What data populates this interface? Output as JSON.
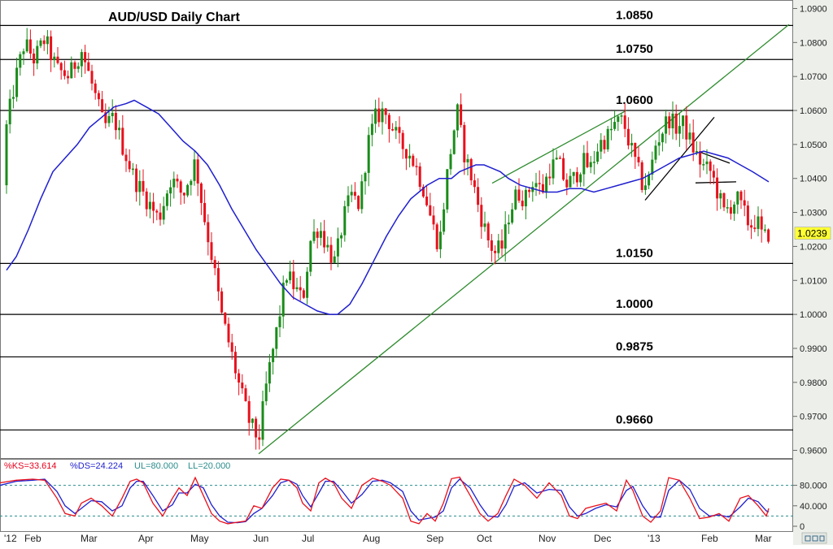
{
  "chart_data": {
    "type": "candlestick",
    "title": "AUD/USD Daily Chart",
    "ylim": [
      0.9575,
      1.0925
    ],
    "y_ticks": [
      "1.0900",
      "1.0800",
      "1.0700",
      "1.0600",
      "1.0500",
      "1.0400",
      "1.0300",
      "1.0200",
      "1.0100",
      "1.0000",
      "0.9900",
      "0.9800",
      "0.9700",
      "0.9600"
    ],
    "x_ticks": [
      "'12",
      "Feb",
      "Mar",
      "Apr",
      "May",
      "Jun",
      "Jul",
      "Aug",
      "Sep",
      "Oct",
      "Nov",
      "Dec",
      "'13",
      "Feb",
      "Mar"
    ],
    "last_price": "1.0239",
    "levels": [
      {
        "label": "1.0850",
        "value": 1.085
      },
      {
        "label": "1.0750",
        "value": 1.075
      },
      {
        "label": "1.0600",
        "value": 1.06
      },
      {
        "label": "1.0150",
        "value": 1.015
      },
      {
        "label": "1.0000",
        "value": 1.0
      },
      {
        "label": "0.9875",
        "value": 0.9875
      },
      {
        "label": "0.9660",
        "value": 0.966
      }
    ],
    "price_path": [
      [
        0,
        1.038
      ],
      [
        8,
        1.055
      ],
      [
        18,
        1.068
      ],
      [
        30,
        1.08
      ],
      [
        42,
        1.075
      ],
      [
        55,
        1.081
      ],
      [
        70,
        1.072
      ],
      [
        85,
        1.07
      ],
      [
        100,
        1.078
      ],
      [
        115,
        1.066
      ],
      [
        128,
        1.055
      ],
      [
        140,
        1.058
      ],
      [
        150,
        1.05
      ],
      [
        165,
        1.04
      ],
      [
        180,
        1.034
      ],
      [
        195,
        1.028
      ],
      [
        210,
        1.04
      ],
      [
        225,
        1.035
      ],
      [
        240,
        1.045
      ],
      [
        250,
        1.03
      ],
      [
        262,
        1.015
      ],
      [
        272,
        1.0
      ],
      [
        283,
        0.99
      ],
      [
        295,
        0.978
      ],
      [
        307,
        0.968
      ],
      [
        318,
        0.963
      ],
      [
        328,
        0.98
      ],
      [
        340,
        0.995
      ],
      [
        352,
        1.012
      ],
      [
        362,
        1.008
      ],
      [
        372,
        1.004
      ],
      [
        382,
        1.022
      ],
      [
        392,
        1.026
      ],
      [
        402,
        1.02
      ],
      [
        412,
        1.015
      ],
      [
        422,
        1.028
      ],
      [
        432,
        1.035
      ],
      [
        442,
        1.032
      ],
      [
        452,
        1.05
      ],
      [
        462,
        1.058
      ],
      [
        472,
        1.06
      ],
      [
        482,
        1.055
      ],
      [
        492,
        1.05
      ],
      [
        502,
        1.048
      ],
      [
        512,
        1.043
      ],
      [
        522,
        1.036
      ],
      [
        532,
        1.026
      ],
      [
        540,
        1.02
      ],
      [
        548,
        1.038
      ],
      [
        555,
        1.05
      ],
      [
        562,
        1.06
      ],
      [
        570,
        1.048
      ],
      [
        580,
        1.04
      ],
      [
        590,
        1.03
      ],
      [
        600,
        1.022
      ],
      [
        608,
        1.018
      ],
      [
        618,
        1.02
      ],
      [
        626,
        1.03
      ],
      [
        636,
        1.036
      ],
      [
        646,
        1.034
      ],
      [
        656,
        1.04
      ],
      [
        666,
        1.036
      ],
      [
        676,
        1.043
      ],
      [
        686,
        1.045
      ],
      [
        696,
        1.038
      ],
      [
        706,
        1.04
      ],
      [
        716,
        1.045
      ],
      [
        726,
        1.043
      ],
      [
        736,
        1.05
      ],
      [
        746,
        1.052
      ],
      [
        756,
        1.056
      ],
      [
        766,
        1.057
      ],
      [
        774,
        1.05
      ],
      [
        782,
        1.044
      ],
      [
        790,
        1.038
      ],
      [
        798,
        1.04
      ],
      [
        806,
        1.05
      ],
      [
        814,
        1.054
      ],
      [
        822,
        1.058
      ],
      [
        830,
        1.055
      ],
      [
        840,
        1.056
      ],
      [
        850,
        1.05
      ],
      [
        858,
        1.046
      ],
      [
        866,
        1.043
      ],
      [
        874,
        1.042
      ],
      [
        882,
        1.036
      ],
      [
        890,
        1.03
      ],
      [
        898,
        1.032
      ],
      [
        906,
        1.034
      ],
      [
        914,
        1.03
      ],
      [
        922,
        1.026
      ],
      [
        930,
        1.028
      ],
      [
        938,
        1.022
      ],
      [
        945,
        1.024
      ]
    ],
    "ma_path": [
      [
        8,
        1.013
      ],
      [
        20,
        1.017
      ],
      [
        35,
        1.025
      ],
      [
        50,
        1.034
      ],
      [
        65,
        1.042
      ],
      [
        80,
        1.046
      ],
      [
        95,
        1.05
      ],
      [
        110,
        1.055
      ],
      [
        125,
        1.058
      ],
      [
        140,
        1.061
      ],
      [
        155,
        1.062
      ],
      [
        165,
        1.063
      ],
      [
        180,
        1.061
      ],
      [
        195,
        1.059
      ],
      [
        210,
        1.055
      ],
      [
        225,
        1.051
      ],
      [
        240,
        1.048
      ],
      [
        255,
        1.044
      ],
      [
        270,
        1.038
      ],
      [
        285,
        1.031
      ],
      [
        300,
        1.025
      ],
      [
        315,
        1.019
      ],
      [
        330,
        1.014
      ],
      [
        345,
        1.009
      ],
      [
        360,
        1.005
      ],
      [
        375,
        1.003
      ],
      [
        390,
        1.001
      ],
      [
        405,
        1.0
      ],
      [
        415,
        1.0
      ],
      [
        430,
        1.003
      ],
      [
        445,
        1.009
      ],
      [
        460,
        1.016
      ],
      [
        475,
        1.023
      ],
      [
        490,
        1.029
      ],
      [
        505,
        1.034
      ],
      [
        515,
        1.036
      ],
      [
        525,
        1.038
      ],
      [
        540,
        1.04
      ],
      [
        555,
        1.04
      ],
      [
        565,
        1.042
      ],
      [
        575,
        1.043
      ],
      [
        585,
        1.044
      ],
      [
        595,
        1.044
      ],
      [
        605,
        1.043
      ],
      [
        615,
        1.042
      ],
      [
        625,
        1.04
      ],
      [
        640,
        1.038
      ],
      [
        655,
        1.037
      ],
      [
        670,
        1.036
      ],
      [
        685,
        1.036
      ],
      [
        700,
        1.037
      ],
      [
        715,
        1.037
      ],
      [
        730,
        1.036
      ],
      [
        745,
        1.037
      ],
      [
        760,
        1.038
      ],
      [
        775,
        1.039
      ],
      [
        790,
        1.04
      ],
      [
        805,
        1.042
      ],
      [
        820,
        1.044
      ],
      [
        835,
        1.046
      ],
      [
        850,
        1.047
      ],
      [
        865,
        1.048
      ],
      [
        880,
        1.047
      ],
      [
        895,
        1.046
      ],
      [
        910,
        1.044
      ],
      [
        925,
        1.042
      ],
      [
        945,
        1.039
      ]
    ],
    "trendlines": [
      {
        "color": "#2e8b2e",
        "points": [
          [
            318,
            0.959
          ],
          [
            970,
            1.0853
          ]
        ]
      },
      {
        "color": "#2e8b2e",
        "points": [
          [
            605,
            1.0386
          ],
          [
            770,
            1.06
          ]
        ]
      },
      {
        "color": "#000000",
        "points": [
          [
            793,
            1.0336
          ],
          [
            878,
            1.058
          ]
        ]
      },
      {
        "color": "#000000",
        "points": [
          [
            860,
            1.0478
          ],
          [
            897,
            1.0445
          ]
        ]
      },
      {
        "color": "#000000",
        "points": [
          [
            855,
            1.0387
          ],
          [
            905,
            1.039
          ]
        ]
      }
    ],
    "oscillator": {
      "label_ks": "%KS=33.614",
      "label_ds": "%DS=24.224",
      "label_ul": "UL=80.000",
      "label_ll": "LL=20.000",
      "ylim": [
        0,
        100
      ],
      "y_ticks": [
        "80.000",
        "40.000",
        "0"
      ],
      "ul": 80,
      "ll": 20,
      "ks_path": [
        [
          0,
          85
        ],
        [
          20,
          90
        ],
        [
          40,
          92
        ],
        [
          55,
          90
        ],
        [
          70,
          55
        ],
        [
          80,
          25
        ],
        [
          92,
          20
        ],
        [
          100,
          45
        ],
        [
          112,
          55
        ],
        [
          125,
          40
        ],
        [
          138,
          20
        ],
        [
          150,
          55
        ],
        [
          160,
          88
        ],
        [
          168,
          92
        ],
        [
          176,
          85
        ],
        [
          188,
          45
        ],
        [
          200,
          20
        ],
        [
          212,
          55
        ],
        [
          220,
          75
        ],
        [
          230,
          60
        ],
        [
          240,
          95
        ],
        [
          250,
          60
        ],
        [
          260,
          25
        ],
        [
          270,
          10
        ],
        [
          280,
          5
        ],
        [
          292,
          8
        ],
        [
          302,
          10
        ],
        [
          312,
          40
        ],
        [
          322,
          35
        ],
        [
          335,
          75
        ],
        [
          345,
          92
        ],
        [
          355,
          90
        ],
        [
          365,
          75
        ],
        [
          372,
          45
        ],
        [
          382,
          30
        ],
        [
          392,
          85
        ],
        [
          400,
          94
        ],
        [
          410,
          85
        ],
        [
          420,
          55
        ],
        [
          432,
          35
        ],
        [
          445,
          80
        ],
        [
          458,
          94
        ],
        [
          470,
          88
        ],
        [
          480,
          80
        ],
        [
          495,
          55
        ],
        [
          505,
          10
        ],
        [
          515,
          5
        ],
        [
          525,
          25
        ],
        [
          535,
          10
        ],
        [
          545,
          45
        ],
        [
          555,
          93
        ],
        [
          565,
          96
        ],
        [
          578,
          60
        ],
        [
          590,
          25
        ],
        [
          600,
          10
        ],
        [
          612,
          25
        ],
        [
          622,
          60
        ],
        [
          632,
          92
        ],
        [
          645,
          80
        ],
        [
          660,
          55
        ],
        [
          675,
          85
        ],
        [
          690,
          60
        ],
        [
          700,
          20
        ],
        [
          710,
          15
        ],
        [
          720,
          35
        ],
        [
          732,
          40
        ],
        [
          745,
          45
        ],
        [
          758,
          30
        ],
        [
          770,
          90
        ],
        [
          778,
          70
        ],
        [
          790,
          20
        ],
        [
          800,
          8
        ],
        [
          812,
          30
        ],
        [
          822,
          95
        ],
        [
          835,
          90
        ],
        [
          848,
          55
        ],
        [
          860,
          15
        ],
        [
          872,
          18
        ],
        [
          884,
          25
        ],
        [
          896,
          10
        ],
        [
          910,
          55
        ],
        [
          920,
          60
        ],
        [
          932,
          40
        ],
        [
          942,
          20
        ],
        [
          945,
          35
        ]
      ],
      "ds_path": [
        [
          0,
          80
        ],
        [
          20,
          88
        ],
        [
          40,
          90
        ],
        [
          55,
          92
        ],
        [
          70,
          68
        ],
        [
          80,
          40
        ],
        [
          92,
          25
        ],
        [
          100,
          35
        ],
        [
          112,
          50
        ],
        [
          125,
          48
        ],
        [
          138,
          30
        ],
        [
          150,
          40
        ],
        [
          160,
          75
        ],
        [
          168,
          88
        ],
        [
          176,
          88
        ],
        [
          188,
          60
        ],
        [
          200,
          30
        ],
        [
          212,
          42
        ],
        [
          220,
          65
        ],
        [
          230,
          65
        ],
        [
          240,
          82
        ],
        [
          250,
          75
        ],
        [
          260,
          42
        ],
        [
          270,
          20
        ],
        [
          280,
          8
        ],
        [
          292,
          7
        ],
        [
          302,
          9
        ],
        [
          312,
          25
        ],
        [
          322,
          35
        ],
        [
          335,
          60
        ],
        [
          345,
          85
        ],
        [
          355,
          90
        ],
        [
          365,
          82
        ],
        [
          372,
          60
        ],
        [
          382,
          38
        ],
        [
          392,
          65
        ],
        [
          400,
          88
        ],
        [
          410,
          88
        ],
        [
          420,
          70
        ],
        [
          432,
          45
        ],
        [
          445,
          62
        ],
        [
          458,
          88
        ],
        [
          470,
          90
        ],
        [
          480,
          85
        ],
        [
          495,
          68
        ],
        [
          505,
          30
        ],
        [
          515,
          12
        ],
        [
          525,
          15
        ],
        [
          535,
          18
        ],
        [
          545,
          30
        ],
        [
          555,
          75
        ],
        [
          565,
          92
        ],
        [
          578,
          75
        ],
        [
          590,
          42
        ],
        [
          600,
          20
        ],
        [
          612,
          18
        ],
        [
          622,
          42
        ],
        [
          632,
          78
        ],
        [
          645,
          85
        ],
        [
          660,
          65
        ],
        [
          675,
          72
        ],
        [
          690,
          70
        ],
        [
          700,
          38
        ],
        [
          710,
          20
        ],
        [
          720,
          25
        ],
        [
          732,
          35
        ],
        [
          745,
          42
        ],
        [
          758,
          38
        ],
        [
          770,
          70
        ],
        [
          778,
          78
        ],
        [
          790,
          40
        ],
        [
          800,
          18
        ],
        [
          812,
          18
        ],
        [
          822,
          70
        ],
        [
          835,
          90
        ],
        [
          848,
          72
        ],
        [
          860,
          35
        ],
        [
          872,
          20
        ],
        [
          884,
          22
        ],
        [
          896,
          18
        ],
        [
          910,
          38
        ],
        [
          920,
          55
        ],
        [
          932,
          48
        ],
        [
          942,
          30
        ],
        [
          945,
          28
        ]
      ]
    }
  }
}
